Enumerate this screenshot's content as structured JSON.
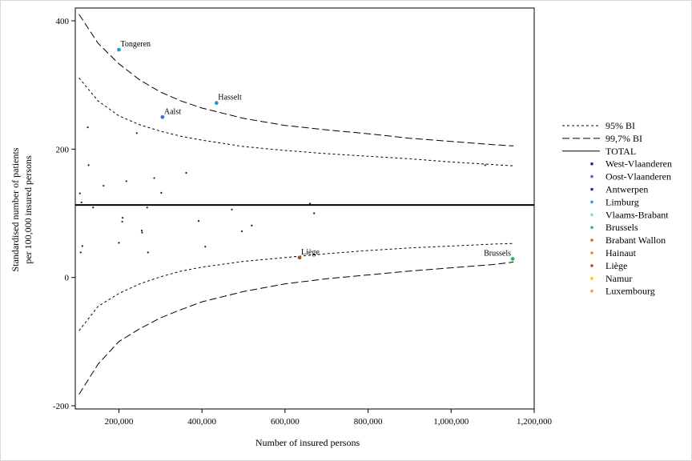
{
  "chart_data": {
    "type": "scatter",
    "xlabel": "Number of insured persons",
    "ylabel_lines": [
      "Standardised number of patients",
      "per 100,000 insured persons"
    ],
    "xlim": [
      95000,
      1200000
    ],
    "ylim": [
      -205,
      420
    ],
    "x_ticks": [
      200000,
      400000,
      600000,
      800000,
      1000000,
      1200000
    ],
    "x_tick_labels": [
      "200,000",
      "400,000",
      "600,000",
      "800,000",
      "1,000,000",
      "1,200,000"
    ],
    "y_ticks": [
      -200,
      0,
      200,
      400
    ],
    "y_tick_labels": [
      "-200",
      "0",
      "200",
      "400"
    ],
    "total": 113,
    "ci95_upper": [
      [
        104000,
        311
      ],
      [
        150000,
        275
      ],
      [
        200000,
        252
      ],
      [
        250000,
        238
      ],
      [
        300000,
        228
      ],
      [
        350000,
        220
      ],
      [
        400000,
        214
      ],
      [
        500000,
        204
      ],
      [
        600000,
        198
      ],
      [
        700000,
        193
      ],
      [
        800000,
        189
      ],
      [
        900000,
        185
      ],
      [
        1000000,
        180
      ],
      [
        1100000,
        176
      ],
      [
        1150000,
        174
      ]
    ],
    "ci95_lower": [
      [
        104000,
        -83
      ],
      [
        150000,
        -45
      ],
      [
        200000,
        -25
      ],
      [
        250000,
        -10
      ],
      [
        300000,
        1
      ],
      [
        350000,
        10
      ],
      [
        400000,
        16
      ],
      [
        500000,
        25
      ],
      [
        600000,
        31
      ],
      [
        700000,
        37
      ],
      [
        800000,
        42
      ],
      [
        900000,
        46
      ],
      [
        1000000,
        49
      ],
      [
        1100000,
        52
      ],
      [
        1150000,
        53
      ]
    ],
    "ci997_upper": [
      [
        104000,
        410
      ],
      [
        150000,
        365
      ],
      [
        200000,
        333
      ],
      [
        250000,
        308
      ],
      [
        300000,
        289
      ],
      [
        350000,
        275
      ],
      [
        400000,
        264
      ],
      [
        500000,
        248
      ],
      [
        600000,
        237
      ],
      [
        700000,
        230
      ],
      [
        800000,
        224
      ],
      [
        900000,
        217
      ],
      [
        1000000,
        212
      ],
      [
        1100000,
        207
      ],
      [
        1150000,
        205
      ]
    ],
    "ci997_lower": [
      [
        104000,
        -182
      ],
      [
        150000,
        -135
      ],
      [
        200000,
        -100
      ],
      [
        250000,
        -80
      ],
      [
        300000,
        -63
      ],
      [
        350000,
        -50
      ],
      [
        400000,
        -38
      ],
      [
        500000,
        -22
      ],
      [
        600000,
        -10
      ],
      [
        700000,
        -2
      ],
      [
        800000,
        4
      ],
      [
        900000,
        10
      ],
      [
        1000000,
        15
      ],
      [
        1100000,
        20
      ],
      [
        1150000,
        24
      ]
    ],
    "labeled_points": [
      {
        "label": "Tongeren",
        "x": 200000,
        "y": 355,
        "color": "#1f9bd6"
      },
      {
        "label": "Hasselt",
        "x": 435000,
        "y": 272,
        "color": "#1f9bd6"
      },
      {
        "label": "Aalst",
        "x": 305000,
        "y": 250,
        "color": "#4a6bd6"
      },
      {
        "label": "Liège",
        "x": 635000,
        "y": 31,
        "color": "#a0522d"
      },
      {
        "label": "Brussels",
        "x": 1148000,
        "y": 29,
        "color": "#3cb44b"
      }
    ],
    "points": [
      {
        "x": 125000,
        "y": 234,
        "color": "#1a1a1a"
      },
      {
        "x": 127000,
        "y": 175,
        "color": "#1a1a1a"
      },
      {
        "x": 163000,
        "y": 143,
        "color": "#1a1a1a"
      },
      {
        "x": 218000,
        "y": 150,
        "color": "#1a1a1a"
      },
      {
        "x": 243000,
        "y": 225,
        "color": "#1a1a1a"
      },
      {
        "x": 285000,
        "y": 155,
        "color": "#1a1a1a"
      },
      {
        "x": 302000,
        "y": 132,
        "color": "#1a1a1a"
      },
      {
        "x": 362000,
        "y": 163,
        "color": "#1a1a1a"
      },
      {
        "x": 106000,
        "y": 131,
        "color": "#1a1a1a"
      },
      {
        "x": 110000,
        "y": 117,
        "color": "#1a1a1a"
      },
      {
        "x": 138000,
        "y": 109,
        "color": "#1a1a1a"
      },
      {
        "x": 268000,
        "y": 109,
        "color": "#1a1a1a"
      },
      {
        "x": 472000,
        "y": 106,
        "color": "#1a1a1a"
      },
      {
        "x": 660000,
        "y": 115,
        "color": "#1a1a1a"
      },
      {
        "x": 670000,
        "y": 100,
        "color": "#1a1a1a"
      },
      {
        "x": 209000,
        "y": 93,
        "color": "#1a1a1a"
      },
      {
        "x": 208000,
        "y": 87,
        "color": "#1a1a1a"
      },
      {
        "x": 392000,
        "y": 88,
        "color": "#1a1a1a"
      },
      {
        "x": 520000,
        "y": 81,
        "color": "#1a1a1a"
      },
      {
        "x": 255000,
        "y": 73,
        "color": "#1a1a1a"
      },
      {
        "x": 256000,
        "y": 70,
        "color": "#1a1a1a"
      },
      {
        "x": 496000,
        "y": 72,
        "color": "#1a1a1a"
      },
      {
        "x": 200000,
        "y": 54,
        "color": "#1a1a1a"
      },
      {
        "x": 112000,
        "y": 49,
        "color": "#1a1a1a"
      },
      {
        "x": 408000,
        "y": 48,
        "color": "#1a1a1a"
      },
      {
        "x": 108000,
        "y": 39,
        "color": "#1a1a1a"
      },
      {
        "x": 270000,
        "y": 39,
        "color": "#1a1a1a"
      },
      {
        "x": 1082000,
        "y": 175,
        "color": "#1a1a1a"
      }
    ],
    "legend": [
      {
        "label": "95% BI",
        "kind": "line",
        "dash": "3,3"
      },
      {
        "label": "99,7% BI",
        "kind": "line",
        "dash": "9,4"
      },
      {
        "label": "TOTAL",
        "kind": "line",
        "dash": ""
      },
      {
        "label": "West-Vlaanderen",
        "kind": "dot",
        "color": "#1b2a7a"
      },
      {
        "label": "Oost-Vlaanderen",
        "kind": "dot",
        "color": "#4a6bd6"
      },
      {
        "label": "Antwerpen",
        "kind": "dot",
        "color": "#1a22e0"
      },
      {
        "label": "Limburg",
        "kind": "dot",
        "color": "#1f9bd6"
      },
      {
        "label": "Vlaams-Brabant",
        "kind": "dot",
        "color": "#87cdf0"
      },
      {
        "label": "Brussels",
        "kind": "dot",
        "color": "#3cb44b"
      },
      {
        "label": "Brabant Wallon",
        "kind": "dot",
        "color": "#d2691e"
      },
      {
        "label": "Hainaut",
        "kind": "dot",
        "color": "#f08a24"
      },
      {
        "label": "Liège",
        "kind": "dot",
        "color": "#a0522d"
      },
      {
        "label": "Namur",
        "kind": "dot",
        "color": "#f5d000"
      },
      {
        "label": "Luxembourg",
        "kind": "dot",
        "color": "#f0a030"
      }
    ]
  }
}
